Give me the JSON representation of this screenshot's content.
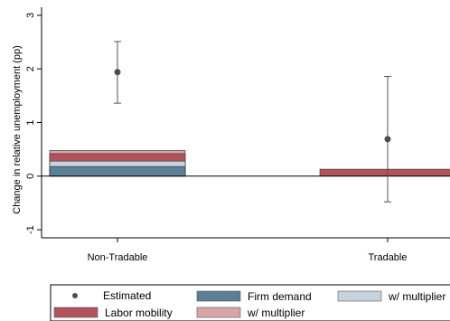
{
  "chart_data": {
    "type": "bar",
    "ylabel": "Change in relative unemployment (pp)",
    "xlabel": "",
    "ylim": [
      -1.15,
      3.15
    ],
    "yticks": [
      -1,
      0,
      1,
      2,
      3
    ],
    "categories": [
      "Non-Tradable",
      "Tradable"
    ],
    "grid": false,
    "legend_position": "bottom",
    "series": [
      {
        "name": "Estimated",
        "kind": "point",
        "color": "#4d4d4d",
        "values": [
          1.94,
          0.69
        ],
        "ci_low": [
          1.36,
          -0.48
        ],
        "ci_high": [
          2.51,
          1.86
        ]
      },
      {
        "name": "Firm demand",
        "kind": "bar",
        "color": "#5b7f95",
        "values": [
          0.18,
          0.0
        ]
      },
      {
        "name": "w/ multiplier",
        "kind": "bar",
        "color": "#c6d3dd",
        "values": [
          0.28,
          0.0
        ]
      },
      {
        "name": "Labor mobility",
        "kind": "bar",
        "color": "#b2525a",
        "values": [
          0.42,
          0.13
        ]
      },
      {
        "name": "w/ multiplier",
        "kind": "bar",
        "color": "#d8a6a6",
        "values": [
          0.48,
          0.0
        ]
      }
    ],
    "legend": [
      {
        "label": "Estimated",
        "type": "marker",
        "color": "#4d4d4d"
      },
      {
        "label": "Firm demand",
        "type": "box",
        "color": "#5b7f95"
      },
      {
        "label": "w/ multiplier",
        "type": "box",
        "color": "#c6d3dd"
      },
      {
        "label": "Labor mobility",
        "type": "box",
        "color": "#b2525a"
      },
      {
        "label": "w/ multiplier",
        "type": "box",
        "color": "#d8a6a6"
      }
    ]
  }
}
